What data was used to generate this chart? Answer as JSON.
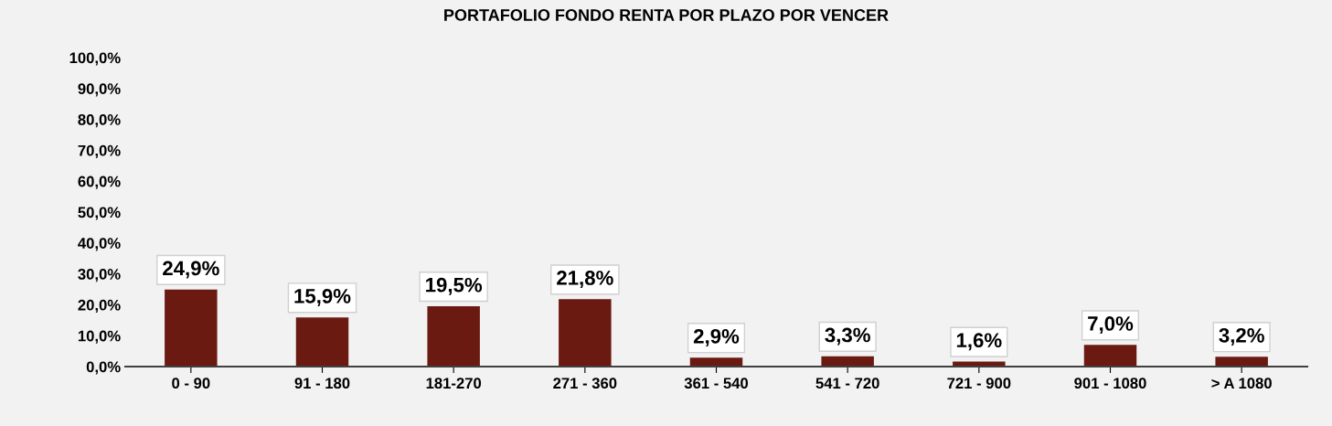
{
  "chart_data": {
    "type": "bar",
    "title": "PORTAFOLIO FONDO RENTA POR PLAZO POR VENCER",
    "categories": [
      "0 - 90",
      "91 - 180",
      "181-270",
      "271 - 360",
      "361 - 540",
      "541 - 720",
      "721 - 900",
      "901 - 1080",
      "> A 1080"
    ],
    "values": [
      24.9,
      15.9,
      19.5,
      21.8,
      2.9,
      3.3,
      1.6,
      7.0,
      3.2
    ],
    "value_labels": [
      "24,9%",
      "15,9%",
      "19,5%",
      "21,8%",
      "2,9%",
      "3,3%",
      "1,6%",
      "7,0%",
      "3,2%"
    ],
    "color": "#6b1a12",
    "ylim": [
      0,
      100
    ],
    "yticks": [
      {
        "value": 0,
        "label": "0,0%"
      },
      {
        "value": 10,
        "label": "10,0%"
      },
      {
        "value": 20,
        "label": "20,0%"
      },
      {
        "value": 30,
        "label": "30,0%"
      },
      {
        "value": 40,
        "label": "40,0%"
      },
      {
        "value": 50,
        "label": "50,0%"
      },
      {
        "value": 60,
        "label": "60,0%"
      },
      {
        "value": 70,
        "label": "70,0%"
      },
      {
        "value": 80,
        "label": "80,0%"
      },
      {
        "value": 90,
        "label": "90,0%"
      },
      {
        "value": 100,
        "label": "100,0%"
      }
    ],
    "grid": false,
    "legend": false
  }
}
